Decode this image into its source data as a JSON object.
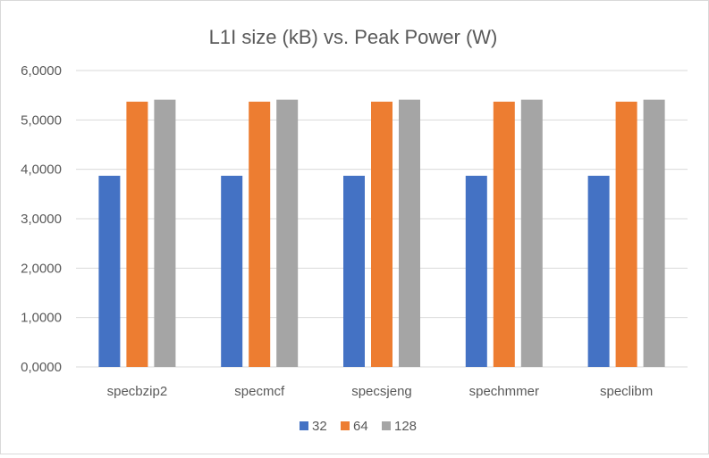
{
  "chart_data": {
    "type": "bar",
    "title": "L1I size (kB) vs. Peak Power (W)",
    "xlabel": "",
    "ylabel": "",
    "categories": [
      "specbzip2",
      "specmcf",
      "specsjeng",
      "spechmmer",
      "speclibm"
    ],
    "series": [
      {
        "name": "32",
        "color": "#4472c4",
        "values": [
          3.87,
          3.87,
          3.87,
          3.87,
          3.87
        ]
      },
      {
        "name": "64",
        "color": "#ed7d31",
        "values": [
          5.37,
          5.37,
          5.37,
          5.37,
          5.37
        ]
      },
      {
        "name": "128",
        "color": "#a5a5a5",
        "values": [
          5.41,
          5.41,
          5.41,
          5.41,
          5.41
        ]
      }
    ],
    "ylim": [
      0,
      6
    ],
    "yticks": [
      "0,0000",
      "1,0000",
      "2,0000",
      "3,0000",
      "4,0000",
      "5,0000",
      "6,0000"
    ],
    "grid": true,
    "legend_position": "bottom"
  }
}
